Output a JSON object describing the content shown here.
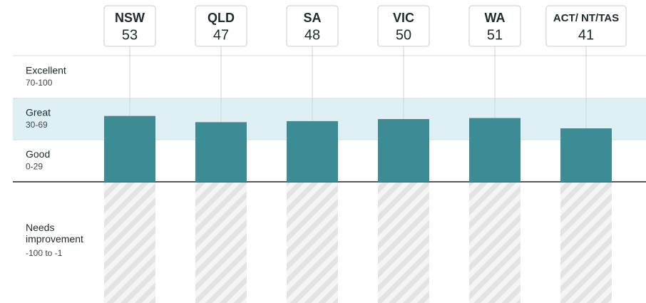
{
  "chart_data": {
    "type": "bar",
    "categories": [
      "NSW",
      "QLD",
      "SA",
      "VIC",
      "WA",
      "ACT/ NT/TAS"
    ],
    "values": [
      53,
      47,
      48,
      50,
      51,
      41
    ],
    "color": "#3d8b94",
    "ylim": [
      -100,
      100
    ],
    "yticks": [
      -100,
      0,
      30,
      70,
      100
    ],
    "bands": [
      {
        "name": "Excellent",
        "range": "70-100"
      },
      {
        "name": "Great",
        "range": "30-69",
        "highlight": true
      },
      {
        "name": "Good",
        "range": "0-29"
      },
      {
        "name": "Needs improvement",
        "range": "-100 to -1"
      }
    ]
  }
}
